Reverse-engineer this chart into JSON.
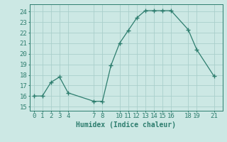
{
  "x": [
    0,
    1,
    2,
    3,
    4,
    7,
    8,
    9,
    10,
    11,
    12,
    13,
    14,
    15,
    16,
    18,
    19,
    21
  ],
  "y": [
    16.0,
    16.0,
    17.3,
    17.8,
    16.3,
    15.5,
    15.5,
    18.9,
    21.0,
    22.2,
    23.4,
    24.1,
    24.1,
    24.1,
    24.1,
    22.3,
    20.4,
    17.9
  ],
  "xticks": [
    0,
    1,
    2,
    3,
    4,
    7,
    8,
    10,
    11,
    12,
    13,
    14,
    15,
    16,
    18,
    19,
    21
  ],
  "xtick_labels": [
    "0",
    "1",
    "2",
    "3",
    "4",
    "7",
    "8",
    "10",
    "11",
    "12",
    "13",
    "14",
    "15",
    "16",
    "18",
    "19",
    "21"
  ],
  "yticks": [
    15,
    16,
    17,
    18,
    19,
    20,
    21,
    22,
    23,
    24
  ],
  "ylim": [
    14.6,
    24.7
  ],
  "xlim": [
    -0.5,
    22.0
  ],
  "xlabel": "Humidex (Indice chaleur)",
  "line_color": "#2d7d6e",
  "marker": "+",
  "marker_size": 4,
  "bg_color": "#cce8e4",
  "grid_color": "#aacfcb",
  "label_fontsize": 7,
  "tick_fontsize": 6.5
}
